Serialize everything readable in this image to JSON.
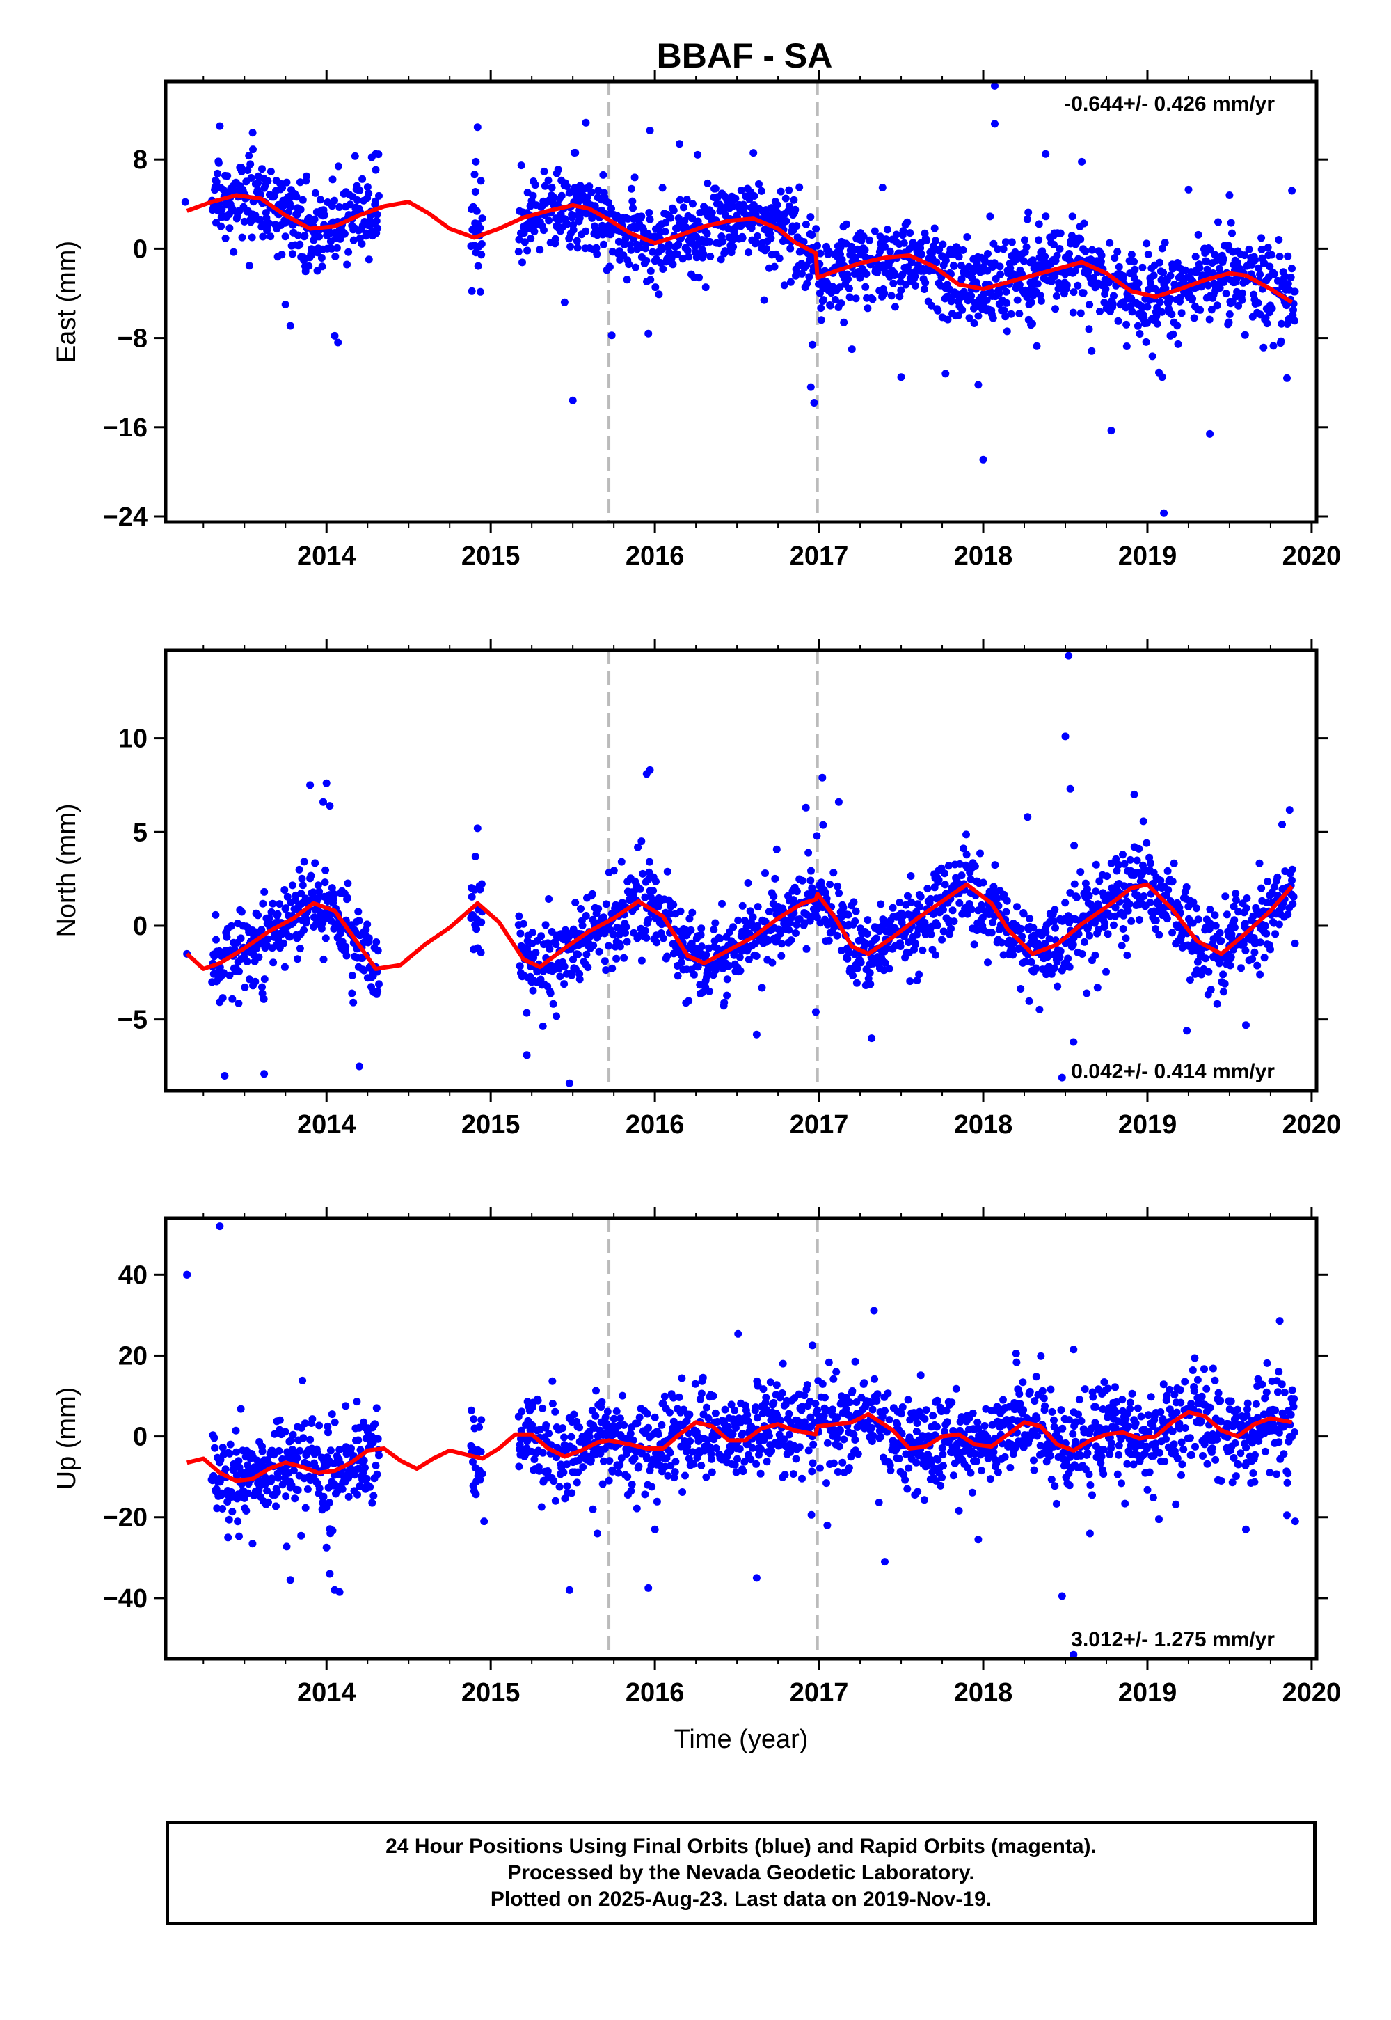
{
  "title": "BBAF - SA",
  "footer": {
    "line1": "24 Hour Positions Using Final Orbits (blue) and Rapid Orbits (magenta).",
    "line2": "Processed by the Nevada Geodetic Laboratory.",
    "line3": "Plotted on 2025-Aug-23. Last data on 2019-Nov-19."
  },
  "colors": {
    "points": "#0000ff",
    "model": "#ff0000",
    "steps": "#bbbbbb"
  },
  "chart_data": [
    {
      "type": "scatter",
      "panel": "east",
      "ylabel": "East (mm)",
      "ylim": [
        -24.5,
        15
      ],
      "yticks": [
        8,
        0,
        -8,
        -16,
        -24
      ],
      "ytick_labels": [
        "8",
        "0",
        "−8",
        "−16",
        "−24"
      ],
      "xlim": [
        2013.02,
        2020.03
      ],
      "xticks": [
        2014,
        2015,
        2016,
        2017,
        2018,
        2019,
        2020
      ],
      "xtick_labels": [
        "2014",
        "2015",
        "2016",
        "2017",
        "2018",
        "2019",
        "2020"
      ],
      "rate_text": "-0.644+/- 0.426 mm/yr",
      "rate_position": "top-right",
      "step_epochs": [
        2015.72,
        2016.99
      ],
      "model": {
        "x": [
          2013.15,
          2013.3,
          2013.45,
          2013.6,
          2013.75,
          2013.9,
          2014.05,
          2014.2,
          2014.35,
          2014.5,
          2014.62,
          2014.75,
          2014.9,
          2015.05,
          2015.2,
          2015.35,
          2015.5,
          2015.6,
          2015.72,
          2015.85,
          2016.0,
          2016.15,
          2016.3,
          2016.45,
          2016.6,
          2016.75,
          2016.85,
          2016.98,
          2016.99,
          2017.1,
          2017.25,
          2017.4,
          2017.55,
          2017.7,
          2017.85,
          2018.0,
          2018.15,
          2018.3,
          2018.45,
          2018.6,
          2018.75,
          2018.9,
          2019.05,
          2019.2,
          2019.35,
          2019.5,
          2019.6,
          2019.75,
          2019.88
        ],
        "y": [
          3.4,
          4.2,
          4.8,
          4.5,
          3.0,
          1.8,
          2.0,
          3.0,
          3.8,
          4.2,
          3.2,
          1.8,
          1.0,
          1.8,
          2.8,
          3.4,
          3.9,
          3.6,
          2.6,
          1.4,
          0.5,
          1.2,
          2.0,
          2.5,
          2.7,
          1.8,
          0.6,
          -0.4,
          -2.6,
          -2.0,
          -1.3,
          -0.8,
          -0.6,
          -1.6,
          -3.2,
          -3.6,
          -3.0,
          -2.4,
          -1.8,
          -1.2,
          -2.2,
          -3.8,
          -4.3,
          -3.6,
          -2.8,
          -2.2,
          -2.4,
          -3.6,
          -4.8
        ]
      },
      "outliers": [
        {
          "x": 2013.35,
          "y": 11.0
        },
        {
          "x": 2013.55,
          "y": 10.4
        },
        {
          "x": 2013.75,
          "y": -5.0
        },
        {
          "x": 2013.78,
          "y": -6.9
        },
        {
          "x": 2014.05,
          "y": -7.8
        },
        {
          "x": 2014.07,
          "y": -8.4
        },
        {
          "x": 2014.3,
          "y": 8.5
        },
        {
          "x": 2014.92,
          "y": 10.9
        },
        {
          "x": 2014.91,
          "y": 7.8
        },
        {
          "x": 2015.45,
          "y": -4.8
        },
        {
          "x": 2015.5,
          "y": -13.6
        },
        {
          "x": 2015.58,
          "y": 11.3
        },
        {
          "x": 2015.97,
          "y": 10.6
        },
        {
          "x": 2015.96,
          "y": -7.6
        },
        {
          "x": 2016.15,
          "y": 9.4
        },
        {
          "x": 2016.6,
          "y": 8.6
        },
        {
          "x": 2016.95,
          "y": -12.4
        },
        {
          "x": 2016.97,
          "y": -13.8
        },
        {
          "x": 2016.96,
          "y": -8.6
        },
        {
          "x": 2017.5,
          "y": -11.5
        },
        {
          "x": 2017.77,
          "y": -11.2
        },
        {
          "x": 2017.97,
          "y": -12.2
        },
        {
          "x": 2018.0,
          "y": -18.9
        },
        {
          "x": 2018.07,
          "y": 11.2
        },
        {
          "x": 2018.07,
          "y": 14.6
        },
        {
          "x": 2018.38,
          "y": 8.5
        },
        {
          "x": 2018.6,
          "y": 7.8
        },
        {
          "x": 2018.78,
          "y": -16.3
        },
        {
          "x": 2019.07,
          "y": -11.1
        },
        {
          "x": 2019.09,
          "y": -11.5
        },
        {
          "x": 2019.1,
          "y": -23.7
        },
        {
          "x": 2019.38,
          "y": -16.6
        },
        {
          "x": 2019.25,
          "y": 5.3
        },
        {
          "x": 2019.5,
          "y": 4.8
        },
        {
          "x": 2019.85,
          "y": -11.6
        },
        {
          "x": 2019.88,
          "y": 5.2
        },
        {
          "x": 2019.14,
          "y": -7.8
        },
        {
          "x": 2017.2,
          "y": -9.0
        }
      ],
      "noise": 2.2,
      "coverage": [
        [
          2013.3,
          2014.32
        ],
        [
          2014.88,
          2014.95
        ],
        [
          2015.17,
          2019.9
        ]
      ],
      "first_point": {
        "x": 2013.14,
        "y": 4.2
      }
    },
    {
      "type": "scatter",
      "panel": "north",
      "ylabel": "North (mm)",
      "ylim": [
        -8.8,
        14.7
      ],
      "yticks": [
        10,
        5,
        0,
        -5
      ],
      "ytick_labels": [
        "10",
        "5",
        "0",
        "−5"
      ],
      "xlim": [
        2013.02,
        2020.03
      ],
      "xticks": [
        2014,
        2015,
        2016,
        2017,
        2018,
        2019,
        2020
      ],
      "xtick_labels": [
        "2014",
        "2015",
        "2016",
        "2017",
        "2018",
        "2019",
        "2020"
      ],
      "rate_text": "0.042+/- 0.414 mm/yr",
      "rate_position": "bottom-right",
      "step_epochs": [
        2015.72,
        2016.99
      ],
      "model": {
        "x": [
          2013.15,
          2013.25,
          2013.35,
          2013.5,
          2013.65,
          2013.8,
          2013.92,
          2014.05,
          2014.18,
          2014.3,
          2014.45,
          2014.6,
          2014.75,
          2014.92,
          2015.05,
          2015.2,
          2015.3,
          2015.45,
          2015.6,
          2015.75,
          2015.9,
          2016.05,
          2016.2,
          2016.3,
          2016.45,
          2016.6,
          2016.75,
          2016.9,
          2016.98,
          2016.99,
          2017.1,
          2017.2,
          2017.3,
          2017.45,
          2017.6,
          2017.75,
          2017.9,
          2018.05,
          2018.15,
          2018.3,
          2018.45,
          2018.6,
          2018.75,
          2018.9,
          2019.0,
          2019.15,
          2019.3,
          2019.45,
          2019.6,
          2019.75,
          2019.88
        ],
        "y": [
          -1.5,
          -2.3,
          -2.0,
          -1.2,
          -0.3,
          0.4,
          1.2,
          0.8,
          -0.8,
          -2.3,
          -2.1,
          -1.0,
          -0.1,
          1.2,
          0.2,
          -1.8,
          -2.2,
          -1.2,
          -0.3,
          0.4,
          1.3,
          0.5,
          -1.6,
          -2.0,
          -1.3,
          -0.6,
          0.4,
          1.2,
          1.4,
          1.7,
          0.4,
          -1.1,
          -1.5,
          -0.6,
          0.4,
          1.3,
          2.2,
          1.2,
          -0.2,
          -1.5,
          -1.0,
          0.1,
          1.0,
          2.0,
          2.2,
          0.9,
          -0.8,
          -1.5,
          -0.4,
          0.8,
          2.1
        ]
      },
      "outliers": [
        {
          "x": 2013.9,
          "y": 7.5
        },
        {
          "x": 2014.0,
          "y": 7.6
        },
        {
          "x": 2013.98,
          "y": 6.6
        },
        {
          "x": 2014.02,
          "y": 6.4
        },
        {
          "x": 2013.38,
          "y": -8.0
        },
        {
          "x": 2013.62,
          "y": -7.9
        },
        {
          "x": 2014.2,
          "y": -7.5
        },
        {
          "x": 2015.22,
          "y": -6.9
        },
        {
          "x": 2015.48,
          "y": -8.4
        },
        {
          "x": 2015.97,
          "y": 8.3
        },
        {
          "x": 2015.95,
          "y": 8.1
        },
        {
          "x": 2016.62,
          "y": -5.8
        },
        {
          "x": 2016.92,
          "y": 6.3
        },
        {
          "x": 2017.02,
          "y": 7.9
        },
        {
          "x": 2017.12,
          "y": 6.6
        },
        {
          "x": 2017.32,
          "y": -6.0
        },
        {
          "x": 2018.27,
          "y": 5.8
        },
        {
          "x": 2018.52,
          "y": 14.4
        },
        {
          "x": 2018.5,
          "y": 10.1
        },
        {
          "x": 2018.53,
          "y": 7.3
        },
        {
          "x": 2018.55,
          "y": -6.2
        },
        {
          "x": 2018.48,
          "y": -8.1
        },
        {
          "x": 2018.92,
          "y": 7.0
        },
        {
          "x": 2019.24,
          "y": -5.6
        },
        {
          "x": 2019.6,
          "y": -5.3
        },
        {
          "x": 2019.82,
          "y": 5.4
        },
        {
          "x": 2014.92,
          "y": 5.2
        },
        {
          "x": 2016.98,
          "y": -4.6
        }
      ],
      "noise": 1.3,
      "coverage": [
        [
          2013.3,
          2014.32
        ],
        [
          2014.88,
          2014.95
        ],
        [
          2015.17,
          2019.9
        ]
      ],
      "first_point": {
        "x": 2013.15,
        "y": -1.5
      }
    },
    {
      "type": "scatter",
      "panel": "up",
      "ylabel": "Up (mm)",
      "ylim": [
        -55,
        54
      ],
      "yticks": [
        40,
        20,
        0,
        -20,
        -40
      ],
      "ytick_labels": [
        "40",
        "20",
        "0",
        "−20",
        "−40"
      ],
      "xlim": [
        2013.02,
        2020.03
      ],
      "xticks": [
        2014,
        2015,
        2016,
        2017,
        2018,
        2019,
        2020
      ],
      "xtick_labels": [
        "2014",
        "2015",
        "2016",
        "2017",
        "2018",
        "2019",
        "2020"
      ],
      "xlabel": "Time (year)",
      "rate_text": "3.012+/- 1.275 mm/yr",
      "rate_position": "bottom-right",
      "step_epochs": [
        2015.72,
        2016.99
      ],
      "model": {
        "x": [
          2013.15,
          2013.25,
          2013.35,
          2013.45,
          2013.55,
          2013.65,
          2013.75,
          2013.85,
          2013.95,
          2014.05,
          2014.15,
          2014.25,
          2014.35,
          2014.45,
          2014.55,
          2014.65,
          2014.75,
          2014.85,
          2014.95,
          2015.05,
          2015.15,
          2015.25,
          2015.35,
          2015.45,
          2015.55,
          2015.65,
          2015.72,
          2015.85,
          2015.95,
          2016.05,
          2016.15,
          2016.25,
          2016.35,
          2016.45,
          2016.55,
          2016.65,
          2016.75,
          2016.85,
          2016.98,
          2016.99,
          2017.1,
          2017.2,
          2017.3,
          2017.45,
          2017.55,
          2017.65,
          2017.75,
          2017.85,
          2017.95,
          2018.05,
          2018.15,
          2018.25,
          2018.35,
          2018.45,
          2018.55,
          2018.65,
          2018.75,
          2018.85,
          2018.95,
          2019.05,
          2019.15,
          2019.25,
          2019.35,
          2019.45,
          2019.55,
          2019.65,
          2019.75,
          2019.88
        ],
        "y": [
          -6.5,
          -5.5,
          -9.0,
          -11.0,
          -10.5,
          -8.0,
          -6.5,
          -7.5,
          -9.0,
          -8.5,
          -6.5,
          -3.5,
          -3.0,
          -6.0,
          -8.0,
          -5.5,
          -3.5,
          -4.5,
          -5.5,
          -3.0,
          0.5,
          0.5,
          -3.0,
          -5.0,
          -3.5,
          -1.5,
          -1.0,
          -2.0,
          -3.0,
          -3.0,
          0.5,
          3.5,
          2.5,
          -1.0,
          -1.0,
          2.0,
          3.0,
          1.5,
          0.5,
          2.5,
          3.0,
          3.5,
          5.5,
          1.5,
          -3.0,
          -2.5,
          0.0,
          0.5,
          -2.0,
          -2.5,
          0.5,
          3.5,
          2.5,
          -2.0,
          -3.5,
          -1.0,
          0.5,
          1.0,
          -0.5,
          0.0,
          3.5,
          6.0,
          5.0,
          1.5,
          0.0,
          3.0,
          4.5,
          3.5
        ]
      },
      "outliers": [
        {
          "x": 2013.15,
          "y": 40.0
        },
        {
          "x": 2013.35,
          "y": 52.0
        },
        {
          "x": 2013.78,
          "y": -35.5
        },
        {
          "x": 2014.05,
          "y": -38.0
        },
        {
          "x": 2014.08,
          "y": -38.5
        },
        {
          "x": 2014.02,
          "y": -34.0
        },
        {
          "x": 2014.0,
          "y": -27.5
        },
        {
          "x": 2013.4,
          "y": -25.0
        },
        {
          "x": 2014.96,
          "y": -21.0
        },
        {
          "x": 2015.48,
          "y": -38.0
        },
        {
          "x": 2015.65,
          "y": -24.0
        },
        {
          "x": 2015.96,
          "y": -37.5
        },
        {
          "x": 2016.0,
          "y": -23.0
        },
        {
          "x": 2016.62,
          "y": -35.0
        },
        {
          "x": 2016.96,
          "y": 22.5
        },
        {
          "x": 2017.05,
          "y": -22.0
        },
        {
          "x": 2017.22,
          "y": 18.5
        },
        {
          "x": 2017.4,
          "y": -31.0
        },
        {
          "x": 2017.97,
          "y": -25.5
        },
        {
          "x": 2018.2,
          "y": 20.5
        },
        {
          "x": 2018.48,
          "y": -39.5
        },
        {
          "x": 2018.55,
          "y": -54.0
        },
        {
          "x": 2018.55,
          "y": 21.5
        },
        {
          "x": 2018.65,
          "y": -24.0
        },
        {
          "x": 2019.07,
          "y": -20.5
        },
        {
          "x": 2019.6,
          "y": -23.0
        },
        {
          "x": 2019.85,
          "y": -19.5
        },
        {
          "x": 2019.9,
          "y": -21.0
        },
        {
          "x": 2019.8,
          "y": 16.0
        },
        {
          "x": 2016.78,
          "y": 18.0
        }
      ],
      "noise": 7.0,
      "coverage": [
        [
          2013.3,
          2014.32
        ],
        [
          2014.88,
          2014.95
        ],
        [
          2015.17,
          2019.9
        ]
      ],
      "first_point": {
        "x": 2013.15,
        "y": 40.0
      }
    }
  ]
}
